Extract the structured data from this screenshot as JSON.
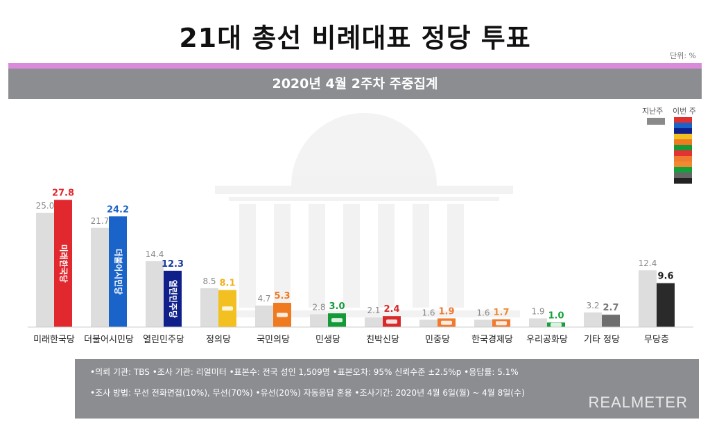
{
  "header": {
    "title": "21대 총선 비례대표 정당 투표",
    "unit": "단위: %",
    "subtitle": "2020년 4월 2주차 주중집계"
  },
  "legend": {
    "prev_label": "지난주",
    "curr_label": "이번 주",
    "curr_swatches": [
      "#e03030",
      "#1a63c8",
      "#10208a",
      "#f2c020",
      "#f07a20",
      "#159a3a",
      "#e23232",
      "#f07a30",
      "#f08a30",
      "#14a03a",
      "#666666",
      "#222222"
    ]
  },
  "chart_data": {
    "type": "bar",
    "ylim": [
      0,
      30
    ],
    "categories": [
      "미래한국당",
      "더불어시민당",
      "열린민주당",
      "정의당",
      "국민의당",
      "민생당",
      "친박신당",
      "민중당",
      "한국경제당",
      "우리공화당",
      "기타 정당",
      "무당층"
    ],
    "series": [
      {
        "name": "지난주",
        "values": [
          25.0,
          21.7,
          14.4,
          8.5,
          4.7,
          2.8,
          2.1,
          1.6,
          1.6,
          1.9,
          3.2,
          12.4
        ]
      },
      {
        "name": "이번 주",
        "values": [
          27.8,
          24.2,
          12.3,
          8.1,
          5.3,
          3.0,
          2.4,
          1.9,
          1.7,
          1.0,
          2.7,
          9.6
        ]
      }
    ],
    "prev_labels": [
      "25.0",
      "21.7",
      "14.4",
      "8.5",
      "4.7",
      "2.8",
      "2.1",
      "1.6",
      "1.6",
      "1.9",
      "3.2",
      "12.4"
    ],
    "curr_labels": [
      "27.8",
      "24.2",
      "12.3",
      "8.1",
      "5.3",
      "3.0",
      "2.4",
      "1.9",
      "1.7",
      "1.0",
      "2.7",
      "9.6"
    ],
    "curr_colors": [
      "#e0282e",
      "#1a63c8",
      "#10208a",
      "#f2c020",
      "#f07a20",
      "#159a3a",
      "#d82a2a",
      "#f07a30",
      "#f07a30",
      "#14a03a",
      "#6e6e6e",
      "#2a2a2a"
    ],
    "label_colors": [
      "#e0282e",
      "#1a63c8",
      "#1a3aa0",
      "#f2b020",
      "#f07a20",
      "#159a3a",
      "#d82a2a",
      "#f07a30",
      "#f08a30",
      "#14a03a",
      "#777777",
      "#222222"
    ],
    "prev_color": "#dddddd",
    "bar_texts": [
      "미래한국당",
      "더불어시민당",
      "열린민주당",
      "정의당",
      "국민의당",
      "민생당",
      "친박신당",
      "민중당",
      "한국경제당",
      "우리공화당",
      "",
      ""
    ]
  },
  "footer": {
    "line1": "•의뢰 기관: TBS •조사 기관: 리얼미터 •표본수: 전국 성인 1,509명 •표본오차: 95% 신뢰수준 ±2.5%p •응답률: 5.1%",
    "line2": "•조사 방법: 무선 전화면접(10%), 무선(70%) •유선(20%) 자동응답 혼용 •조사기간: 2020년 4월 6일(월) ~ 4월 8일(수)",
    "brand": "REALMETER"
  }
}
